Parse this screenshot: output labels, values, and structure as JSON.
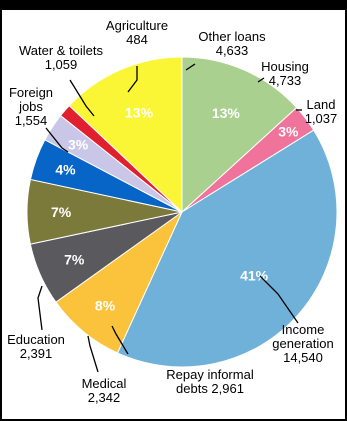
{
  "chart_data": {
    "type": "pie",
    "slices": [
      {
        "label": "Housing",
        "value": 4733,
        "value_text": "4,733",
        "pct_label": "13%",
        "color": "#a9d08e",
        "pct_color": "#ffffff"
      },
      {
        "label": "Land",
        "value": 1037,
        "value_text": "1,037",
        "pct_label": "3%",
        "color": "#f0739c",
        "pct_color": "#ffffff"
      },
      {
        "label": "Income generation",
        "value": 14540,
        "value_text": "14,540",
        "pct_label": "41%",
        "color": "#6fb1d8",
        "pct_color": "#ffffff"
      },
      {
        "label": "Repay informal debts",
        "value": 2961,
        "value_text": "2,961",
        "pct_label": "8%",
        "color": "#fbc23c",
        "pct_color": "#ffffff"
      },
      {
        "label": "Medical",
        "value": 2342,
        "value_text": "2,342",
        "pct_label": "7%",
        "color": "#5a5a5e",
        "pct_color": "#ffffff"
      },
      {
        "label": "Education",
        "value": 2391,
        "value_text": "2,391",
        "pct_label": "7%",
        "color": "#7c7a3a",
        "pct_color": "#ffffff"
      },
      {
        "label": "Foreign jobs",
        "value": 1554,
        "value_text": "1,554",
        "pct_label": "4%",
        "color": "#0865c8",
        "pct_color": "#ffffff"
      },
      {
        "label": "Water & toilets",
        "value": 1059,
        "value_text": "1,059",
        "pct_label": "3%",
        "color": "#c9c6e8",
        "pct_color": "#ffffff"
      },
      {
        "label": "Agriculture",
        "value": 484,
        "value_text": "484",
        "pct_label": "",
        "color": "#e0202e",
        "pct_color": "#ffffff"
      },
      {
        "label": "Other loans",
        "value": 4633,
        "value_text": "4,633",
        "pct_label": "13%",
        "color": "#fbf635",
        "pct_color": "#ffffff"
      }
    ],
    "labels": [
      {
        "lines": [
          "Housing",
          "4,733"
        ]
      },
      {
        "lines": [
          "Land",
          "1,037"
        ]
      },
      {
        "lines": [
          "Income",
          "generation",
          "14,540"
        ]
      },
      {
        "lines": [
          "Repay informal",
          "debts 2,961"
        ]
      },
      {
        "lines": [
          "Medical",
          "2,342"
        ]
      },
      {
        "lines": [
          "Education",
          "2,391"
        ]
      },
      {
        "lines": [
          "Foreign",
          "jobs",
          "1,554"
        ]
      },
      {
        "lines": [
          "Water & toilets",
          "1,059"
        ]
      },
      {
        "lines": [
          "Agriculture",
          "484"
        ]
      },
      {
        "lines": [
          "Other loans",
          "4,633"
        ]
      }
    ]
  }
}
